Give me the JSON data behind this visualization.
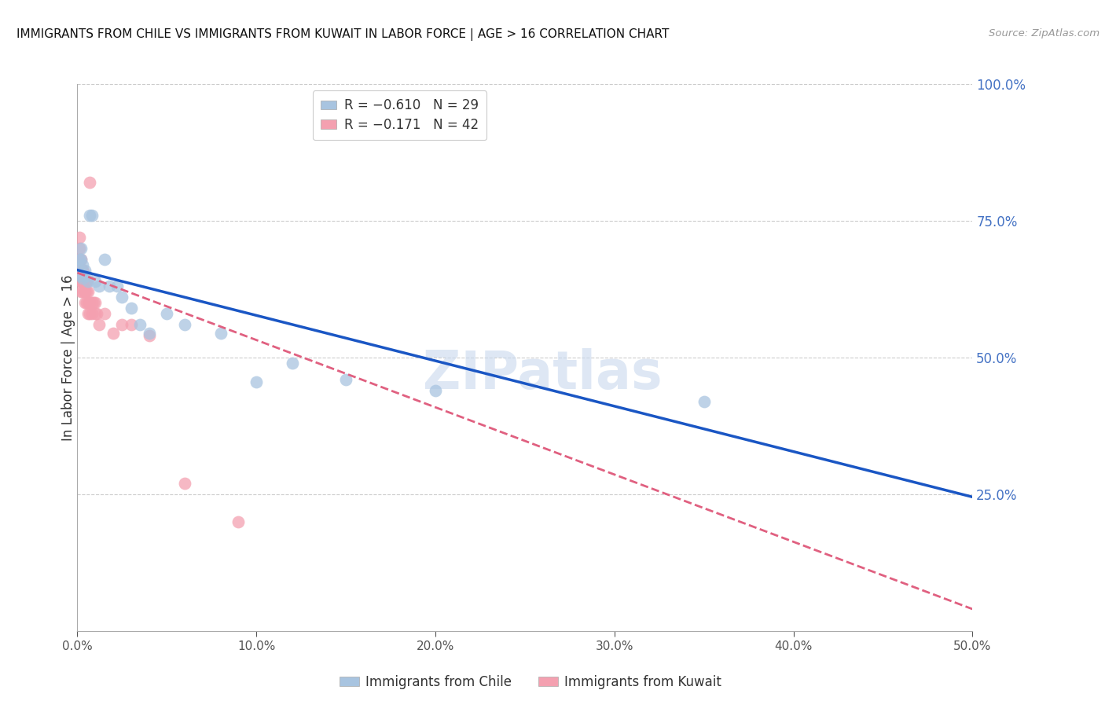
{
  "title": "IMMIGRANTS FROM CHILE VS IMMIGRANTS FROM KUWAIT IN LABOR FORCE | AGE > 16 CORRELATION CHART",
  "source": "Source: ZipAtlas.com",
  "ylabel": "In Labor Force | Age > 16",
  "xlim": [
    0.0,
    0.5
  ],
  "ylim": [
    0.0,
    1.0
  ],
  "chile_color": "#a8c4e0",
  "kuwait_color": "#f4a0b0",
  "chile_line_color": "#1a56c4",
  "kuwait_line_color": "#e06080",
  "R_chile": -0.61,
  "N_chile": 29,
  "R_kuwait": -0.171,
  "N_kuwait": 42,
  "chile_x": [
    0.001,
    0.001,
    0.002,
    0.002,
    0.002,
    0.003,
    0.003,
    0.004,
    0.005,
    0.006,
    0.007,
    0.008,
    0.01,
    0.012,
    0.015,
    0.018,
    0.022,
    0.025,
    0.03,
    0.035,
    0.04,
    0.05,
    0.06,
    0.08,
    0.1,
    0.12,
    0.15,
    0.2,
    0.35
  ],
  "chile_y": [
    0.68,
    0.66,
    0.7,
    0.68,
    0.65,
    0.67,
    0.645,
    0.66,
    0.65,
    0.64,
    0.76,
    0.76,
    0.64,
    0.63,
    0.68,
    0.63,
    0.63,
    0.61,
    0.59,
    0.56,
    0.545,
    0.58,
    0.56,
    0.545,
    0.455,
    0.49,
    0.46,
    0.44,
    0.42
  ],
  "kuwait_x": [
    0.001,
    0.001,
    0.001,
    0.001,
    0.002,
    0.002,
    0.002,
    0.002,
    0.002,
    0.003,
    0.003,
    0.003,
    0.003,
    0.003,
    0.004,
    0.004,
    0.004,
    0.004,
    0.005,
    0.005,
    0.005,
    0.005,
    0.006,
    0.006,
    0.006,
    0.007,
    0.007,
    0.007,
    0.008,
    0.008,
    0.009,
    0.01,
    0.01,
    0.011,
    0.012,
    0.015,
    0.02,
    0.025,
    0.03,
    0.04,
    0.06,
    0.09
  ],
  "kuwait_y": [
    0.68,
    0.7,
    0.66,
    0.72,
    0.66,
    0.64,
    0.68,
    0.64,
    0.62,
    0.66,
    0.64,
    0.64,
    0.62,
    0.66,
    0.64,
    0.62,
    0.62,
    0.6,
    0.64,
    0.62,
    0.6,
    0.64,
    0.62,
    0.6,
    0.58,
    0.82,
    0.6,
    0.58,
    0.6,
    0.58,
    0.6,
    0.6,
    0.58,
    0.58,
    0.56,
    0.58,
    0.545,
    0.56,
    0.56,
    0.54,
    0.27,
    0.2
  ],
  "watermark": "ZIPatlas",
  "background_color": "#ffffff",
  "grid_color": "#cccccc",
  "chile_line_x0": 0.0,
  "chile_line_y0": 0.66,
  "chile_line_x1": 0.5,
  "chile_line_y1": 0.245,
  "kuwait_line_x0": 0.0,
  "kuwait_line_y0": 0.655,
  "kuwait_line_x1": 0.5,
  "kuwait_line_y1": 0.04
}
